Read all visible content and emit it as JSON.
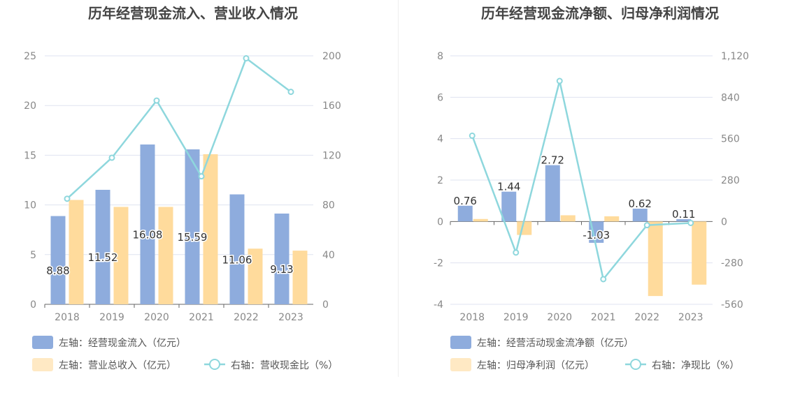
{
  "colors": {
    "bar_blue": "#8eacdd",
    "bar_orange": "#ffdb9c",
    "line": "#8ed7dd",
    "axis_text": "#888888",
    "grid": "#dfe3f0",
    "title": "#444444"
  },
  "chart_data": [
    {
      "type": "bar",
      "title": "历年经营现金流入、营业收入情况",
      "categories": [
        "2018",
        "2019",
        "2020",
        "2021",
        "2022",
        "2023"
      ],
      "left_ylim": [
        0,
        25
      ],
      "left_ticks": [
        "0",
        "5",
        "10",
        "15",
        "20",
        "25"
      ],
      "right_ylim": [
        0,
        200
      ],
      "right_ticks": [
        "0",
        "40",
        "80",
        "120",
        "160",
        "200"
      ],
      "grid": true,
      "legend_position": "bottom",
      "series": [
        {
          "name": "左轴：经营现金流入（亿元）",
          "kind": "bar",
          "axis": "left",
          "color": "#8eacdd",
          "values": [
            8.88,
            11.52,
            16.08,
            15.59,
            11.06,
            9.13
          ],
          "labels": [
            "8.88",
            "11.52",
            "16.08",
            "15.59",
            "11.06",
            "9.13"
          ]
        },
        {
          "name": "左轴：营业总收入（亿元）",
          "kind": "bar",
          "axis": "left",
          "color": "#ffdb9c",
          "values": [
            10.5,
            9.8,
            9.8,
            15.1,
            5.6,
            5.4
          ]
        },
        {
          "name": "右轴：营收现金比（%）",
          "kind": "line",
          "axis": "right",
          "color": "#8ed7dd",
          "values": [
            85,
            118,
            164,
            103,
            198,
            171
          ]
        }
      ]
    },
    {
      "type": "bar",
      "title": "历年经营现金流净额、归母净利润情况",
      "categories": [
        "2018",
        "2019",
        "2020",
        "2021",
        "2022",
        "2023"
      ],
      "left_ylim": [
        -4,
        8
      ],
      "left_ticks": [
        "-4",
        "-2",
        "0",
        "2",
        "4",
        "6",
        "8"
      ],
      "right_ylim": [
        -560,
        1120
      ],
      "right_ticks": [
        "-560",
        "-280",
        "0",
        "280",
        "560",
        "840",
        "1,120"
      ],
      "grid": true,
      "legend_position": "bottom",
      "series": [
        {
          "name": "左轴：经营活动现金流净额（亿元）",
          "kind": "bar",
          "axis": "left",
          "color": "#8eacdd",
          "values": [
            0.76,
            1.44,
            2.72,
            -1.03,
            0.62,
            0.11
          ],
          "labels": [
            "0.76",
            "1.44",
            "2.72",
            "-1.03",
            "0.62",
            "0.11"
          ]
        },
        {
          "name": "左轴：归母净利润（亿元）",
          "kind": "bar",
          "axis": "left",
          "color": "#ffdb9c",
          "values": [
            0.12,
            -0.65,
            0.3,
            0.25,
            -3.6,
            -3.05
          ]
        },
        {
          "name": "右轴：净现比（%）",
          "kind": "line",
          "axis": "right",
          "color": "#8ed7dd",
          "values": [
            580,
            -210,
            950,
            -390,
            -25,
            -10
          ]
        }
      ]
    }
  ]
}
